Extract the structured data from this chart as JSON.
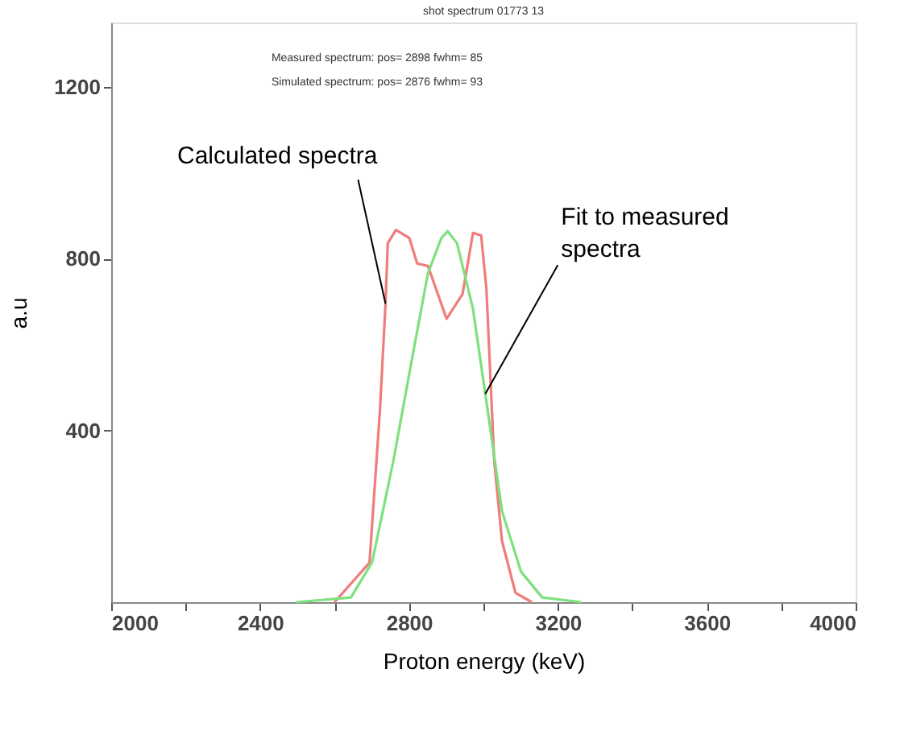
{
  "chart_data": {
    "type": "line",
    "title": "shot spectrum 01773 13",
    "xlabel": "Proton energy (keV)",
    "ylabel": "a.u",
    "xlim": [
      2000,
      4000
    ],
    "ylim": [
      0,
      1350
    ],
    "xticks": [
      2000,
      {
        "value": 2200,
        "label": null
      },
      2400,
      {
        "value": 2600,
        "label": null
      },
      2800,
      {
        "value": 3000,
        "label": null
      },
      3200,
      {
        "value": 3400,
        "label": null
      },
      3600,
      {
        "value": 3800,
        "label": null
      },
      4000
    ],
    "yticks": [
      400,
      800,
      1200
    ],
    "grid": false,
    "marker": "none",
    "line_style": "solid",
    "series": [
      {
        "color": "#f07c7c",
        "x": [
          2600,
          2694,
          2722,
          2737,
          2743,
          2765,
          2801,
          2822,
          2851,
          2901,
          2944,
          2972,
          2994,
          3008,
          3029,
          3050,
          3086,
          3130
        ],
        "values": [
          0,
          92,
          447,
          695,
          836,
          867,
          848,
          789,
          783,
          660,
          718,
          860,
          854,
          730,
          329,
          142,
          22,
          0
        ]
      },
      {
        "color": "#7ee07e",
        "x": [
          2497,
          2644,
          2701,
          2758,
          2808,
          2851,
          2887,
          2904,
          2929,
          2972,
          3015,
          3050,
          3101,
          3158,
          3263
        ],
        "values": [
          0,
          11,
          93,
          329,
          566,
          766,
          848,
          864,
          836,
          683,
          425,
          212,
          71,
          11,
          0
        ]
      }
    ],
    "annotations": [
      "Measured spectrum: pos= 2898 fwhm= 85",
      "Simulated spectrum: pos= 2876 fwhm= 93",
      {
        "text": "Calculated spectra",
        "x": 2737,
        "y": 695
      },
      {
        "text": "Fit to measured\nspectra",
        "x": 3005,
        "y": 485
      }
    ]
  }
}
